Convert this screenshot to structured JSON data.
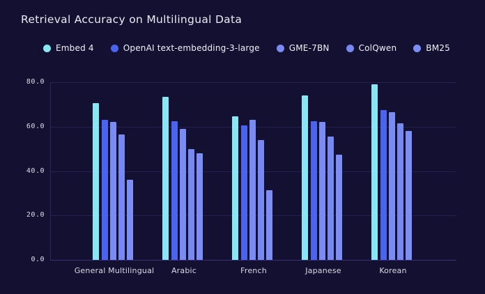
{
  "chart_data": {
    "type": "bar",
    "title": "Retrieval Accuracy on Multilingual Data",
    "categories": [
      "General Multilingual",
      "Arabic",
      "French",
      "Japanese",
      "Korean"
    ],
    "series": [
      {
        "name": "Embed 4",
        "color": "#89E7F5",
        "values": [
          70.5,
          73.5,
          64.5,
          74.0,
          79.0
        ]
      },
      {
        "name": "OpenAI text-embedding-3-large",
        "color": "#4B64EF",
        "values": [
          63.0,
          62.5,
          60.5,
          62.5,
          67.5
        ]
      },
      {
        "name": "GME-7BN",
        "color": "#7A8BF3",
        "values": [
          62.0,
          59.0,
          63.0,
          62.0,
          66.5
        ]
      },
      {
        "name": "ColQwen",
        "color": "#7788F1",
        "values": [
          56.5,
          50.0,
          54.0,
          55.5,
          61.5
        ]
      },
      {
        "name": "BM25",
        "color": "#7C8DF4",
        "values": [
          36.0,
          48.0,
          31.5,
          47.5,
          58.0
        ]
      }
    ],
    "xlabel": "",
    "ylabel": "",
    "ylim": [
      0,
      80
    ],
    "yticks": [
      {
        "value": 0,
        "label": "0.0"
      },
      {
        "value": 20,
        "label": "20.0"
      },
      {
        "value": 40,
        "label": "40.0"
      },
      {
        "value": 60,
        "label": "60.0"
      },
      {
        "value": 80,
        "label": "80.0"
      }
    ],
    "grid": true,
    "legend_position": "top"
  },
  "colors": {
    "background": "#141031",
    "gridline": "#272050",
    "baseline": "#3A3078",
    "title_text": "#ECEAF4",
    "tick_text": "#DFDEE8",
    "category_text": "#D8DAE6"
  }
}
